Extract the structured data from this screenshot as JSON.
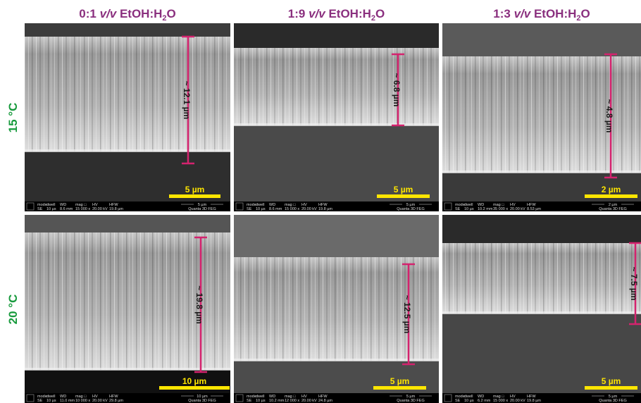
{
  "columns": [
    {
      "ratio": "0:1",
      "unit": "v/v",
      "solvent": "EtOH:H",
      "subscript": "2",
      "solvent_end": "O"
    },
    {
      "ratio": "1:9",
      "unit": "v/v",
      "solvent": "EtOH:H",
      "subscript": "2",
      "solvent_end": "O"
    },
    {
      "ratio": "1:3",
      "unit": "v/v",
      "solvent": "EtOH:H",
      "subscript": "2",
      "solvent_end": "O"
    }
  ],
  "rows": [
    "15 °C",
    "20 °C"
  ],
  "info_headers": [
    "mode",
    "dwell",
    "WD",
    "mag □",
    "HV",
    "HFW"
  ],
  "panels": [
    {
      "thickness": "~ 12.1 µm",
      "scale_bar": "5 µm",
      "info": [
        "SE",
        "10 µs",
        "8.6 mm",
        "15 000 x",
        "20.00 kV",
        "19.8 µm"
      ],
      "info_scale": "5 µm",
      "instrument": "Quanta 3D FEG"
    },
    {
      "thickness": "~ 6.8 µm",
      "scale_bar": "5 µm",
      "info": [
        "SE",
        "10 µs",
        "8.6 mm",
        "15 000 x",
        "20.00 kV",
        "19.8 µm"
      ],
      "info_scale": "5 µm",
      "instrument": "Quanta 3D FEG"
    },
    {
      "thickness": "~ 4.8 µm",
      "scale_bar": "2 µm",
      "info": [
        "SE",
        "10 µs",
        "10.2 mm",
        "35 000 x",
        "20.00 kV",
        "8.53 µm"
      ],
      "info_scale": "2 µm",
      "instrument": "Quanta 3D FEG"
    },
    {
      "thickness": "~ 19.8 µm",
      "scale_bar": "10 µm",
      "info": [
        "SE",
        "10 µs",
        "11.0 mm",
        "10 000 x",
        "20.00 kV",
        "29.8 µm"
      ],
      "info_scale": "10 µm",
      "instrument": "Quanta 3D FEG"
    },
    {
      "thickness": "~ 12.5 µm",
      "scale_bar": "5 µm",
      "info": [
        "SE",
        "10 µs",
        "10.2 mm",
        "12 000 x",
        "20.00 kV",
        "24.8 µm"
      ],
      "info_scale": "5 µm",
      "instrument": "Quanta 3D FEG"
    },
    {
      "thickness": "~ 7.5 µm",
      "scale_bar": "5 µm",
      "info": [
        "SE",
        "10 µs",
        "6.2 mm",
        "15 000 x",
        "20.00 kV",
        "19.8 µm"
      ],
      "info_scale": "5 µm",
      "instrument": "Quanta 3D FEG"
    }
  ]
}
